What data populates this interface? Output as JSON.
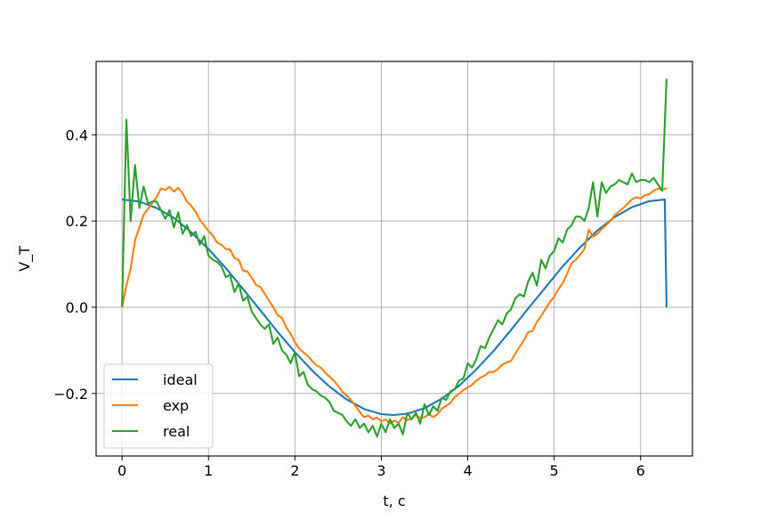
{
  "chart_data": {
    "type": "line",
    "title": "",
    "xlabel": "t, c",
    "ylabel": "V_T",
    "xlim": [
      -0.3,
      6.6
    ],
    "ylim": [
      -0.345,
      0.57
    ],
    "xticks": [
      0,
      1,
      2,
      3,
      4,
      5,
      6
    ],
    "xtick_labels": [
      "0",
      "1",
      "2",
      "3",
      "4",
      "5",
      "6"
    ],
    "yticks": [
      -0.2,
      0.0,
      0.2,
      0.4
    ],
    "ytick_labels": [
      "−0.2",
      "0.0",
      "0.2",
      "0.4"
    ],
    "grid": true,
    "legend_position": "lower-left",
    "series": [
      {
        "name": "ideal",
        "color": "#1f77b4",
        "points": [
          [
            0,
            0.25
          ],
          [
            0.2,
            0.245
          ],
          [
            0.4,
            0.23
          ],
          [
            0.6,
            0.207
          ],
          [
            0.8,
            0.174
          ],
          [
            1.0,
            0.135
          ],
          [
            1.2,
            0.091
          ],
          [
            1.4,
            0.042
          ],
          [
            1.6,
            -0.007
          ],
          [
            1.8,
            -0.057
          ],
          [
            2.0,
            -0.104
          ],
          [
            2.2,
            -0.147
          ],
          [
            2.4,
            -0.184
          ],
          [
            2.6,
            -0.214
          ],
          [
            2.8,
            -0.236
          ],
          [
            3.0,
            -0.248
          ],
          [
            3.14,
            -0.25
          ],
          [
            3.3,
            -0.247
          ],
          [
            3.5,
            -0.234
          ],
          [
            3.7,
            -0.212
          ],
          [
            3.9,
            -0.182
          ],
          [
            4.1,
            -0.144
          ],
          [
            4.3,
            -0.101
          ],
          [
            4.5,
            -0.053
          ],
          [
            4.7,
            -0.003
          ],
          [
            4.9,
            0.046
          ],
          [
            5.1,
            0.095
          ],
          [
            5.3,
            0.139
          ],
          [
            5.5,
            0.178
          ],
          [
            5.7,
            0.209
          ],
          [
            5.9,
            0.232
          ],
          [
            6.1,
            0.246
          ],
          [
            6.28,
            0.25
          ],
          [
            6.3,
            0.0
          ]
        ]
      },
      {
        "name": "exp",
        "color": "#ff7f0e",
        "points": [
          [
            0,
            0.0
          ],
          [
            0.05,
            0.05
          ],
          [
            0.1,
            0.09
          ],
          [
            0.15,
            0.155
          ],
          [
            0.2,
            0.185
          ],
          [
            0.25,
            0.215
          ],
          [
            0.3,
            0.228
          ],
          [
            0.35,
            0.242
          ],
          [
            0.4,
            0.255
          ],
          [
            0.45,
            0.275
          ],
          [
            0.5,
            0.272
          ],
          [
            0.55,
            0.279
          ],
          [
            0.6,
            0.268
          ],
          [
            0.65,
            0.277
          ],
          [
            0.7,
            0.265
          ],
          [
            0.75,
            0.245
          ],
          [
            0.8,
            0.235
          ],
          [
            0.85,
            0.222
          ],
          [
            0.9,
            0.203
          ],
          [
            0.95,
            0.19
          ],
          [
            1.0,
            0.177
          ],
          [
            1.05,
            0.166
          ],
          [
            1.1,
            0.15
          ],
          [
            1.15,
            0.145
          ],
          [
            1.2,
            0.135
          ],
          [
            1.25,
            0.134
          ],
          [
            1.3,
            0.114
          ],
          [
            1.35,
            0.11
          ],
          [
            1.4,
            0.085
          ],
          [
            1.45,
            0.083
          ],
          [
            1.5,
            0.069
          ],
          [
            1.55,
            0.052
          ],
          [
            1.6,
            0.047
          ],
          [
            1.65,
            0.032
          ],
          [
            1.7,
            0.015
          ],
          [
            1.75,
            0.0
          ],
          [
            1.8,
            -0.018
          ],
          [
            1.85,
            -0.025
          ],
          [
            1.9,
            -0.047
          ],
          [
            1.95,
            -0.061
          ],
          [
            2.0,
            -0.081
          ],
          [
            2.05,
            -0.096
          ],
          [
            2.1,
            -0.105
          ],
          [
            2.15,
            -0.113
          ],
          [
            2.2,
            -0.125
          ],
          [
            2.25,
            -0.135
          ],
          [
            2.3,
            -0.14
          ],
          [
            2.35,
            -0.152
          ],
          [
            2.4,
            -0.161
          ],
          [
            2.45,
            -0.17
          ],
          [
            2.5,
            -0.182
          ],
          [
            2.55,
            -0.196
          ],
          [
            2.6,
            -0.205
          ],
          [
            2.65,
            -0.215
          ],
          [
            2.7,
            -0.229
          ],
          [
            2.75,
            -0.243
          ],
          [
            2.8,
            -0.255
          ],
          [
            2.85,
            -0.251
          ],
          [
            2.9,
            -0.26
          ],
          [
            2.95,
            -0.256
          ],
          [
            3.0,
            -0.264
          ],
          [
            3.05,
            -0.26
          ],
          [
            3.1,
            -0.27
          ],
          [
            3.15,
            -0.263
          ],
          [
            3.2,
            -0.268
          ],
          [
            3.25,
            -0.255
          ],
          [
            3.3,
            -0.262
          ],
          [
            3.35,
            -0.259
          ],
          [
            3.4,
            -0.25
          ],
          [
            3.45,
            -0.257
          ],
          [
            3.5,
            -0.255
          ],
          [
            3.55,
            -0.248
          ],
          [
            3.6,
            -0.255
          ],
          [
            3.65,
            -0.248
          ],
          [
            3.7,
            -0.235
          ],
          [
            3.75,
            -0.229
          ],
          [
            3.8,
            -0.222
          ],
          [
            3.85,
            -0.208
          ],
          [
            3.9,
            -0.201
          ],
          [
            3.95,
            -0.192
          ],
          [
            4.0,
            -0.186
          ],
          [
            4.05,
            -0.18
          ],
          [
            4.1,
            -0.17
          ],
          [
            4.15,
            -0.163
          ],
          [
            4.2,
            -0.158
          ],
          [
            4.25,
            -0.15
          ],
          [
            4.3,
            -0.15
          ],
          [
            4.35,
            -0.143
          ],
          [
            4.4,
            -0.133
          ],
          [
            4.45,
            -0.128
          ],
          [
            4.5,
            -0.125
          ],
          [
            4.55,
            -0.108
          ],
          [
            4.6,
            -0.092
          ],
          [
            4.65,
            -0.076
          ],
          [
            4.7,
            -0.058
          ],
          [
            4.75,
            -0.055
          ],
          [
            4.8,
            -0.034
          ],
          [
            4.85,
            -0.02
          ],
          [
            4.9,
            -0.004
          ],
          [
            4.95,
            0.012
          ],
          [
            5.0,
            0.024
          ],
          [
            5.05,
            0.042
          ],
          [
            5.1,
            0.056
          ],
          [
            5.15,
            0.078
          ],
          [
            5.2,
            0.102
          ],
          [
            5.25,
            0.11
          ],
          [
            5.3,
            0.122
          ],
          [
            5.35,
            0.135
          ],
          [
            5.4,
            0.18
          ],
          [
            5.45,
            0.164
          ],
          [
            5.5,
            0.17
          ],
          [
            5.55,
            0.182
          ],
          [
            5.6,
            0.19
          ],
          [
            5.65,
            0.2
          ],
          [
            5.7,
            0.213
          ],
          [
            5.75,
            0.222
          ],
          [
            5.8,
            0.23
          ],
          [
            5.85,
            0.24
          ],
          [
            5.9,
            0.25
          ],
          [
            5.95,
            0.255
          ],
          [
            6.0,
            0.252
          ],
          [
            6.05,
            0.26
          ],
          [
            6.1,
            0.262
          ],
          [
            6.15,
            0.27
          ],
          [
            6.2,
            0.275
          ],
          [
            6.25,
            0.272
          ],
          [
            6.3,
            0.276
          ]
        ]
      },
      {
        "name": "real",
        "color": "#2ca02c",
        "points": [
          [
            0,
            0.0
          ],
          [
            0.05,
            0.435
          ],
          [
            0.1,
            0.2
          ],
          [
            0.15,
            0.33
          ],
          [
            0.2,
            0.23
          ],
          [
            0.25,
            0.28
          ],
          [
            0.3,
            0.24
          ],
          [
            0.35,
            0.245
          ],
          [
            0.4,
            0.245
          ],
          [
            0.45,
            0.225
          ],
          [
            0.5,
            0.205
          ],
          [
            0.55,
            0.225
          ],
          [
            0.6,
            0.185
          ],
          [
            0.65,
            0.22
          ],
          [
            0.7,
            0.17
          ],
          [
            0.75,
            0.19
          ],
          [
            0.8,
            0.165
          ],
          [
            0.85,
            0.175
          ],
          [
            0.9,
            0.145
          ],
          [
            0.95,
            0.165
          ],
          [
            1.0,
            0.12
          ],
          [
            1.05,
            0.11
          ],
          [
            1.1,
            0.105
          ],
          [
            1.15,
            0.095
          ],
          [
            1.2,
            0.07
          ],
          [
            1.25,
            0.075
          ],
          [
            1.3,
            0.035
          ],
          [
            1.35,
            0.055
          ],
          [
            1.4,
            0.015
          ],
          [
            1.45,
            0.025
          ],
          [
            1.5,
            -0.01
          ],
          [
            1.55,
            -0.025
          ],
          [
            1.6,
            -0.04
          ],
          [
            1.65,
            -0.05
          ],
          [
            1.7,
            -0.04
          ],
          [
            1.75,
            -0.085
          ],
          [
            1.8,
            -0.07
          ],
          [
            1.85,
            -0.1
          ],
          [
            1.9,
            -0.11
          ],
          [
            1.95,
            -0.13
          ],
          [
            2.0,
            -0.105
          ],
          [
            2.05,
            -0.16
          ],
          [
            2.1,
            -0.15
          ],
          [
            2.15,
            -0.18
          ],
          [
            2.2,
            -0.19
          ],
          [
            2.25,
            -0.195
          ],
          [
            2.3,
            -0.205
          ],
          [
            2.35,
            -0.21
          ],
          [
            2.4,
            -0.22
          ],
          [
            2.45,
            -0.24
          ],
          [
            2.5,
            -0.245
          ],
          [
            2.55,
            -0.25
          ],
          [
            2.6,
            -0.265
          ],
          [
            2.65,
            -0.275
          ],
          [
            2.7,
            -0.26
          ],
          [
            2.75,
            -0.28
          ],
          [
            2.8,
            -0.27
          ],
          [
            2.85,
            -0.29
          ],
          [
            2.9,
            -0.275
          ],
          [
            2.95,
            -0.3
          ],
          [
            3.0,
            -0.27
          ],
          [
            3.05,
            -0.29
          ],
          [
            3.1,
            -0.26
          ],
          [
            3.15,
            -0.28
          ],
          [
            3.2,
            -0.27
          ],
          [
            3.25,
            -0.295
          ],
          [
            3.3,
            -0.245
          ],
          [
            3.35,
            -0.26
          ],
          [
            3.4,
            -0.245
          ],
          [
            3.45,
            -0.27
          ],
          [
            3.5,
            -0.225
          ],
          [
            3.55,
            -0.25
          ],
          [
            3.6,
            -0.23
          ],
          [
            3.65,
            -0.24
          ],
          [
            3.7,
            -0.21
          ],
          [
            3.75,
            -0.215
          ],
          [
            3.8,
            -0.195
          ],
          [
            3.85,
            -0.19
          ],
          [
            3.9,
            -0.17
          ],
          [
            3.95,
            -0.165
          ],
          [
            4.0,
            -0.13
          ],
          [
            4.05,
            -0.14
          ],
          [
            4.1,
            -0.12
          ],
          [
            4.15,
            -0.09
          ],
          [
            4.2,
            -0.095
          ],
          [
            4.25,
            -0.07
          ],
          [
            4.3,
            -0.05
          ],
          [
            4.35,
            -0.03
          ],
          [
            4.4,
            -0.04
          ],
          [
            4.45,
            -0.015
          ],
          [
            4.5,
            -0.005
          ],
          [
            4.55,
            0.02
          ],
          [
            4.6,
            0.03
          ],
          [
            4.65,
            0.025
          ],
          [
            4.7,
            0.06
          ],
          [
            4.75,
            0.08
          ],
          [
            4.8,
            0.05
          ],
          [
            4.85,
            0.11
          ],
          [
            4.9,
            0.09
          ],
          [
            4.95,
            0.12
          ],
          [
            5.0,
            0.13
          ],
          [
            5.05,
            0.16
          ],
          [
            5.1,
            0.15
          ],
          [
            5.15,
            0.18
          ],
          [
            5.2,
            0.19
          ],
          [
            5.25,
            0.21
          ],
          [
            5.3,
            0.21
          ],
          [
            5.35,
            0.2
          ],
          [
            5.4,
            0.23
          ],
          [
            5.45,
            0.29
          ],
          [
            5.5,
            0.21
          ],
          [
            5.55,
            0.29
          ],
          [
            5.6,
            0.265
          ],
          [
            5.65,
            0.28
          ],
          [
            5.7,
            0.285
          ],
          [
            5.75,
            0.295
          ],
          [
            5.8,
            0.29
          ],
          [
            5.85,
            0.285
          ],
          [
            5.9,
            0.31
          ],
          [
            5.95,
            0.29
          ],
          [
            6.0,
            0.295
          ],
          [
            6.05,
            0.295
          ],
          [
            6.1,
            0.29
          ],
          [
            6.15,
            0.3
          ],
          [
            6.2,
            0.285
          ],
          [
            6.25,
            0.27
          ],
          [
            6.3,
            0.53
          ]
        ]
      }
    ]
  }
}
